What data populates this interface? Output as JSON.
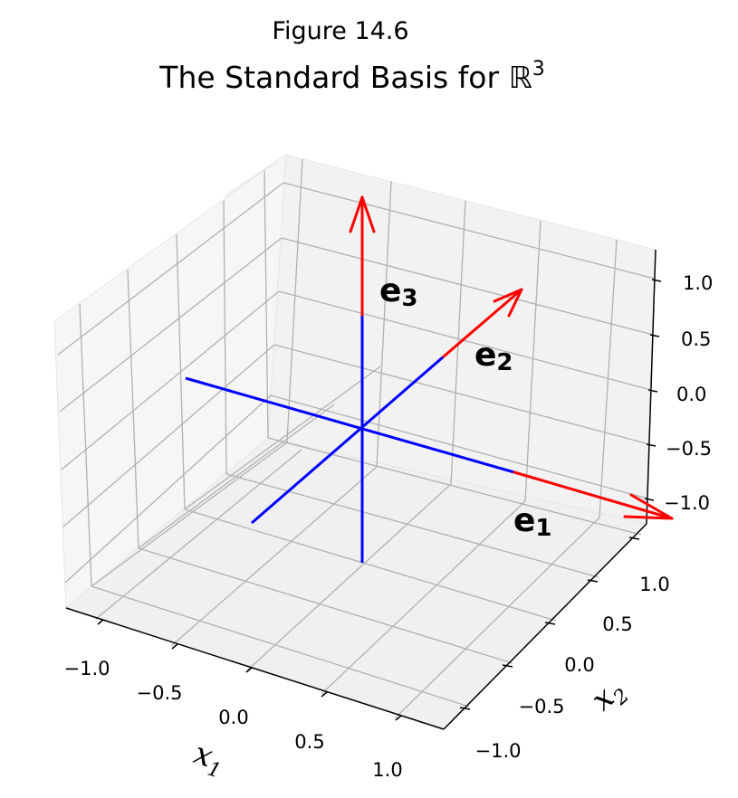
{
  "figure_number": "Figure 14.6",
  "title": {
    "text": "The Standard Basis for ",
    "symbol": "ℝ",
    "superscript": "3"
  },
  "axes": {
    "x_label": {
      "base": "x",
      "sub": "1"
    },
    "y_label": {
      "base": "x",
      "sub": "2"
    },
    "x_ticks": [
      "−1.0",
      "−0.5",
      "0.0",
      "0.5",
      "1.0"
    ],
    "y_ticks": [
      "−1.0",
      "−0.5",
      "0.0",
      "0.5",
      "1.0"
    ],
    "z_ticks": [
      "−1.0",
      "−0.5",
      "0.0",
      "0.5",
      "1.0"
    ],
    "x_range": [
      -1.2,
      1.2
    ],
    "y_range": [
      -1.2,
      1.2
    ],
    "z_range": [
      -1.2,
      1.2
    ],
    "grid": true
  },
  "vectors": [
    {
      "name": "e1-vector",
      "label_base": "e",
      "label_sub": "1",
      "end": [
        1,
        0,
        0
      ],
      "color": "#ff0000"
    },
    {
      "name": "e2-vector",
      "label_base": "e",
      "label_sub": "2",
      "end": [
        0,
        1,
        0
      ],
      "color": "#ff0000"
    },
    {
      "name": "e3-vector",
      "label_base": "e",
      "label_sub": "3",
      "end": [
        0,
        0,
        1
      ],
      "color": "#ff0000"
    }
  ],
  "axis_lines_color": "#0000ff",
  "pane_color": "#f2f2f2",
  "grid_color": "#b0b0b0"
}
